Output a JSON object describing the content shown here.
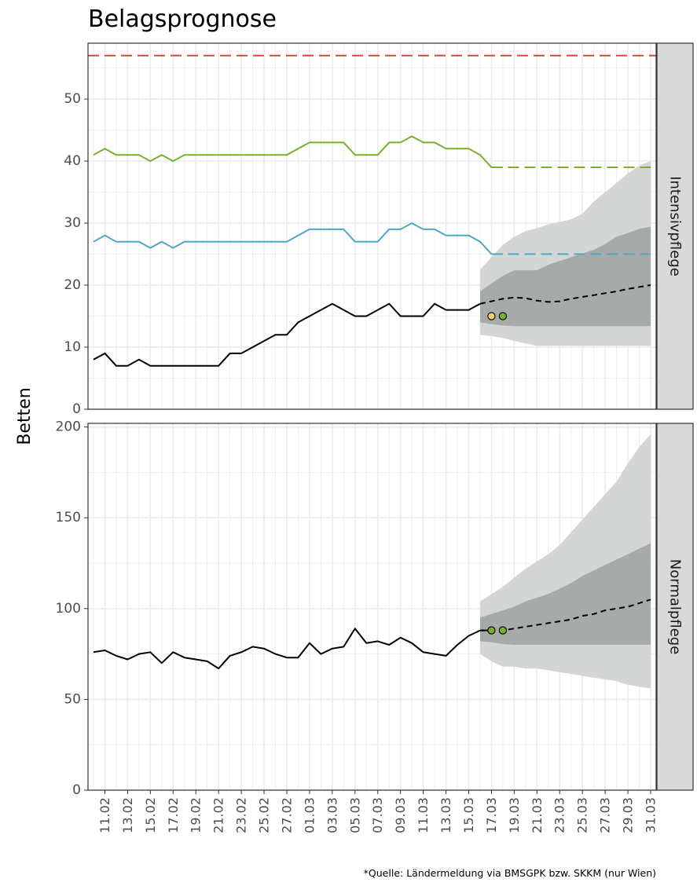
{
  "chart_data": {
    "type": "line",
    "title": "Belagsprognose",
    "ylabel": "Betten",
    "caption": "*Quelle: Ländermeldung via BMSGPK bzw. SKKM (nur Wien)",
    "x_range": [
      "2021-02-10",
      "2021-03-31"
    ],
    "x_ticks": [
      "11.02",
      "13.02",
      "15.02",
      "17.02",
      "19.02",
      "21.02",
      "23.02",
      "25.02",
      "27.02",
      "01.03",
      "03.03",
      "05.03",
      "07.03",
      "09.03",
      "11.03",
      "13.03",
      "15.03",
      "17.03",
      "19.03",
      "21.03",
      "23.03",
      "25.03",
      "27.03",
      "29.03",
      "31.03"
    ],
    "x_tick_dates": [
      "2021-02-11",
      "2021-02-13",
      "2021-02-15",
      "2021-02-17",
      "2021-02-19",
      "2021-02-21",
      "2021-02-23",
      "2021-02-25",
      "2021-02-27",
      "2021-03-01",
      "2021-03-03",
      "2021-03-05",
      "2021-03-07",
      "2021-03-09",
      "2021-03-11",
      "2021-03-13",
      "2021-03-15",
      "2021-03-17",
      "2021-03-19",
      "2021-03-21",
      "2021-03-23",
      "2021-03-25",
      "2021-03-27",
      "2021-03-29",
      "2021-03-31"
    ],
    "grid": true,
    "colors": {
      "occupied": "#000000",
      "capacity_green": "#78b22a",
      "capacity_blue": "#4fa7c8",
      "limit_red": "#e0462b",
      "band_outer": "#d3d6d5",
      "band_inner": "#a6aaa9",
      "point_yellow": "#f3d06c",
      "point_green": "#78b22a",
      "strip_bg": "#d9d9d9",
      "grid": "#ebebeb"
    },
    "panels": [
      {
        "strip_label": "Intensivpflege",
        "ylim": [
          0,
          59
        ],
        "yticks": [
          0,
          10,
          20,
          30,
          40,
          50
        ],
        "hline_red": 57,
        "occupied": {
          "start_date": "2021-02-10",
          "values": [
            8,
            9,
            7,
            7,
            8,
            7,
            7,
            7,
            7,
            7,
            7,
            7,
            9,
            9,
            10,
            11,
            12,
            12,
            14,
            15,
            16,
            17,
            16,
            15,
            15,
            16,
            17,
            15,
            15,
            15,
            17,
            16,
            16,
            16,
            17
          ]
        },
        "capacity_green": {
          "start_date": "2021-02-10",
          "values": [
            41,
            42,
            41,
            41,
            41,
            40,
            41,
            40,
            41,
            41,
            41,
            41,
            41,
            41,
            41,
            41,
            41,
            41,
            42,
            43,
            43,
            43,
            43,
            41,
            41,
            41,
            43,
            43,
            44,
            43,
            43,
            42,
            42,
            42,
            41,
            39,
            39
          ]
        },
        "capacity_green_projected": {
          "from": "2021-03-17",
          "to": "2021-03-31",
          "value": 39
        },
        "capacity_blue": {
          "start_date": "2021-02-10",
          "values": [
            27,
            28,
            27,
            27,
            27,
            26,
            27,
            26,
            27,
            27,
            27,
            27,
            27,
            27,
            27,
            27,
            27,
            27,
            28,
            29,
            29,
            29,
            29,
            27,
            27,
            27,
            29,
            29,
            30,
            29,
            29,
            28,
            28,
            28,
            27,
            25,
            25
          ]
        },
        "capacity_blue_projected": {
          "from": "2021-03-17",
          "to": "2021-03-31",
          "value": 25
        },
        "forecast": {
          "start_date": "2021-03-16",
          "median": [
            17,
            17.4,
            17.8,
            18,
            17.9,
            17.5,
            17.3,
            17.4,
            17.8,
            18.1,
            18.4,
            18.7,
            19,
            19.4,
            19.7,
            20
          ],
          "inner_low": [
            14,
            13.7,
            13.5,
            13.4,
            13.4,
            13.4,
            13.4,
            13.4,
            13.4,
            13.4,
            13.4,
            13.4,
            13.4,
            13.4,
            13.4,
            13.4
          ],
          "inner_high": [
            19,
            20.3,
            21.5,
            22.4,
            22.4,
            22.4,
            23.3,
            23.9,
            24.5,
            25.1,
            25.7,
            26.6,
            27.8,
            28.4,
            29.1,
            29.4
          ],
          "outer_low": [
            12,
            11.8,
            11.5,
            11,
            10.6,
            10.2,
            10.2,
            10.2,
            10.2,
            10.2,
            10.2,
            10.2,
            10.2,
            10.2,
            10.2,
            10.2
          ],
          "outer_high": [
            22.5,
            24.5,
            26.5,
            27.8,
            28.7,
            29.2,
            29.8,
            30.2,
            30.6,
            31.5,
            33.5,
            35,
            36.5,
            38,
            39.3,
            40
          ]
        },
        "points": [
          {
            "date": "2021-03-17",
            "value": 15,
            "color": "yellow"
          },
          {
            "date": "2021-03-18",
            "value": 15,
            "color": "green"
          }
        ]
      },
      {
        "strip_label": "Normalpflege",
        "ylim": [
          0,
          202
        ],
        "yticks": [
          0,
          50,
          100,
          150,
          200
        ],
        "occupied": {
          "start_date": "2021-02-10",
          "values": [
            76,
            77,
            74,
            72,
            75,
            76,
            70,
            76,
            73,
            72,
            71,
            67,
            74,
            76,
            79,
            78,
            75,
            73,
            73,
            81,
            75,
            78,
            79,
            89,
            81,
            82,
            80,
            84,
            81,
            76,
            75,
            74,
            80,
            85,
            88,
            88
          ]
        },
        "forecast": {
          "start_date": "2021-03-16",
          "median": [
            88,
            88,
            88,
            89,
            90,
            91,
            92,
            93,
            94,
            96,
            97,
            99,
            100,
            101,
            103,
            105
          ],
          "inner_low": [
            82,
            81.5,
            80.5,
            80,
            80,
            80,
            80,
            80,
            80,
            80,
            80,
            80,
            80,
            80,
            80,
            80
          ],
          "inner_high": [
            95,
            97,
            99,
            101,
            104,
            106,
            108,
            111,
            114,
            118,
            121,
            124,
            127,
            130,
            133,
            136
          ],
          "outer_low": [
            75,
            71,
            68,
            68,
            67,
            67,
            66,
            65,
            64,
            63,
            62,
            61,
            60,
            58,
            57,
            56
          ],
          "outer_high": [
            104,
            108,
            112,
            117,
            122,
            126,
            130,
            135,
            142,
            149,
            156,
            163,
            170,
            180,
            189,
            196
          ]
        },
        "points": [
          {
            "date": "2021-03-17",
            "value": 88,
            "color": "green"
          },
          {
            "date": "2021-03-18",
            "value": 88,
            "color": "green"
          }
        ]
      }
    ]
  }
}
